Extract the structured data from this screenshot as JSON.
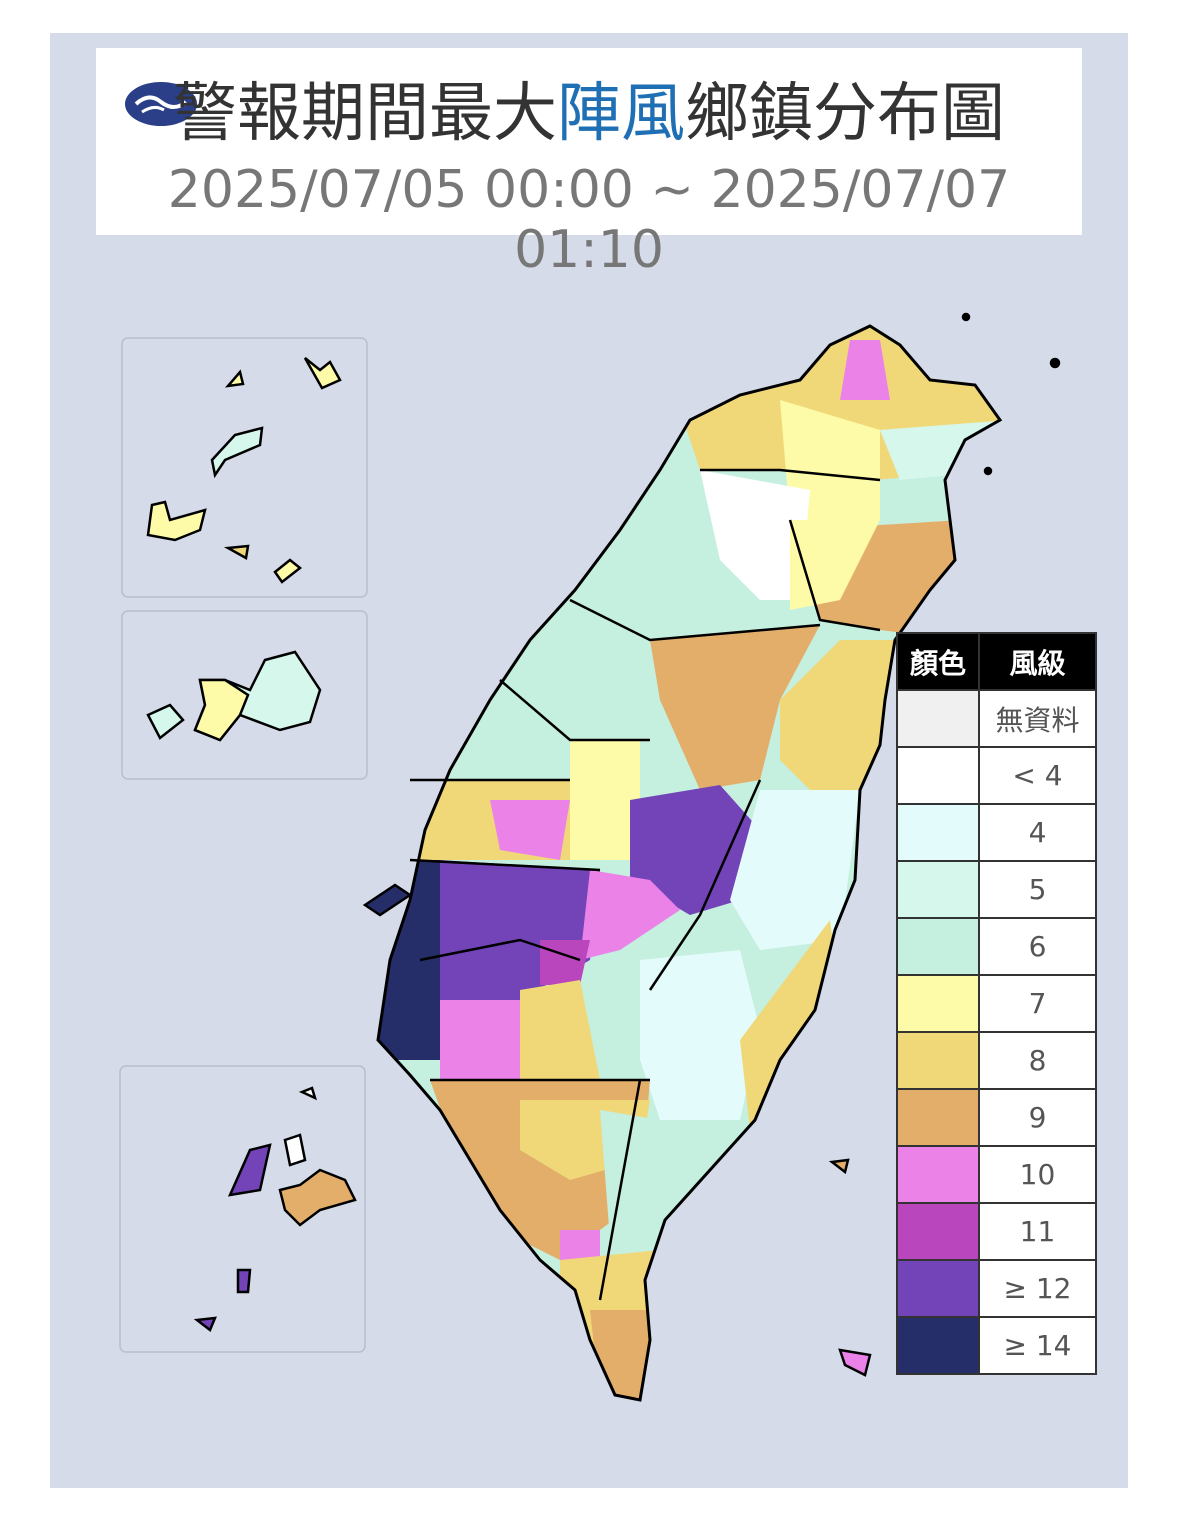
{
  "header": {
    "title_pre": "警報期間最大",
    "title_highlight": "陣風",
    "title_post": "鄉鎮分布圖",
    "subtitle": "2025/07/05 00:00 ~ 2025/07/07 01:10"
  },
  "legend": {
    "headers": [
      "顏色",
      "風級"
    ],
    "rows": [
      {
        "color": "#f0f0f0",
        "label": "無資料"
      },
      {
        "color": "#ffffff",
        "label": "< 4"
      },
      {
        "color": "#e4fbfb",
        "label": "4"
      },
      {
        "color": "#d6f8ec",
        "label": "5"
      },
      {
        "color": "#c5efdf",
        "label": "6"
      },
      {
        "color": "#fdfba7",
        "label": "7"
      },
      {
        "color": "#f0d879",
        "label": "8"
      },
      {
        "color": "#e3ae6a",
        "label": "9"
      },
      {
        "color": "#eb82e8",
        "label": "10"
      },
      {
        "color": "#b946bd",
        "label": "11"
      },
      {
        "color": "#7244b8",
        "label": "≥ 12"
      },
      {
        "color": "#262e6a",
        "label": "≥ 14"
      }
    ]
  }
}
